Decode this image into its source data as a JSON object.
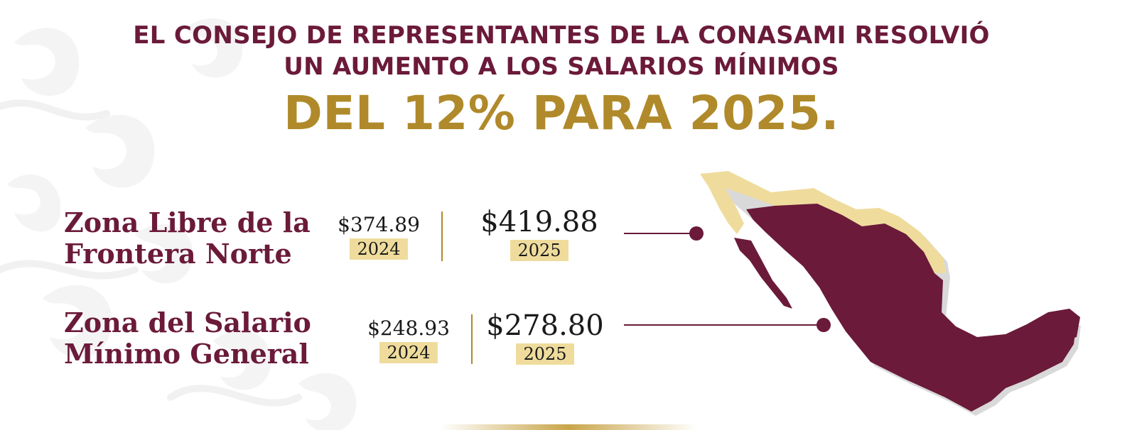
{
  "headline": {
    "line1": "EL CONSEJO DE REPRESENTANTES DE LA CONASAMI RESOLVIÓ",
    "line2": "UN AUMENTO A LOS SALARIOS MÍNIMOS",
    "highlight": "DEL 12% PARA 2025."
  },
  "zones": [
    {
      "label_line1": "Zona Libre de la",
      "label_line2": "Frontera Norte",
      "previous": {
        "amount": "$374.89",
        "year": "2024"
      },
      "current": {
        "amount": "$419.88",
        "year": "2025"
      }
    },
    {
      "label_line1": "Zona del Salario",
      "label_line2": "Mínimo General",
      "previous": {
        "amount": "$248.93",
        "year": "2024"
      },
      "current": {
        "amount": "$278.80",
        "year": "2025"
      }
    }
  ],
  "colors": {
    "maroon": "#6b1a39",
    "gold": "#b08a2a",
    "sand": "#efdc9c",
    "map_shadow": "#d9d9d9"
  },
  "map": {
    "name": "Mexico map",
    "highlighted_zone": "northern border strip"
  }
}
